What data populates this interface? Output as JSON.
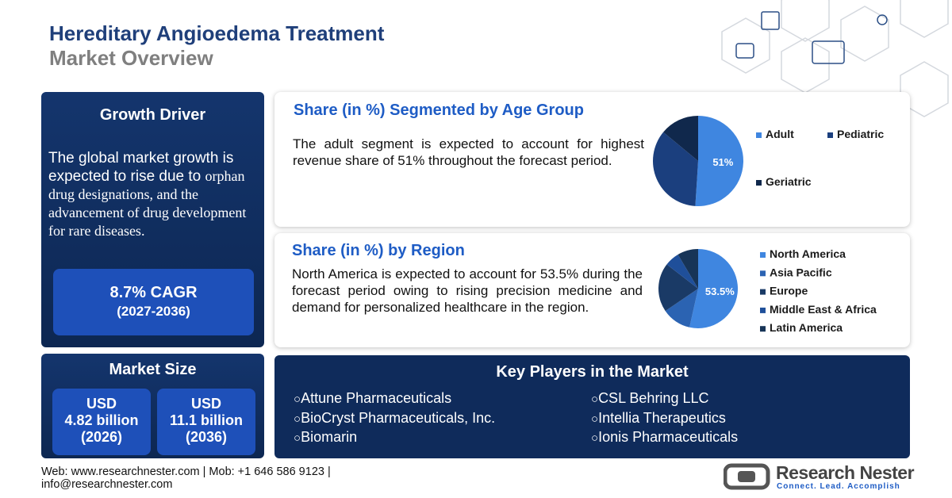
{
  "header": {
    "title": "Hereditary Angioedema Treatment",
    "subtitle": "Market Overview"
  },
  "growth_driver": {
    "title": "Growth Driver",
    "text_sans": "The global market growth is expected to rise due to",
    "text_serif": "orphan drug designations, and the advancement of drug development for rare diseases.",
    "cagr": "8.7% CAGR",
    "period": "(2027-2036)"
  },
  "market_size": {
    "title": "Market Size",
    "boxes": [
      {
        "currency": "USD",
        "value": "4.82 billion",
        "year": "(2026)"
      },
      {
        "currency": "USD",
        "value": "11.1 billion",
        "year": "(2036)"
      }
    ]
  },
  "age_chart": {
    "type": "pie",
    "title": "Share (in %) Segmented by Age Group",
    "text": "The adult segment is expected to account for highest revenue share of 51% throughout the forecast period.",
    "categories": [
      "Adult",
      "Pediatric",
      "Geriatric"
    ],
    "values": [
      51,
      35,
      14
    ],
    "value_labels": [
      "51%",
      null,
      null
    ],
    "colors": [
      "#3f86e0",
      "#1b3f7e",
      "#10284c"
    ]
  },
  "region_chart": {
    "type": "pie",
    "title": "Share (in %) by Region",
    "text": "North America is expected to account for 53.5% during the forecast period owing to rising precision medicine and demand for personalized healthcare in the region.",
    "categories": [
      "North America",
      "Asia Pacific",
      "Europe",
      "Middle East & Africa",
      "Latin America"
    ],
    "values": [
      53.5,
      12,
      20,
      6,
      8.5
    ],
    "value_labels": [
      "53.5%",
      null,
      null,
      null,
      null
    ],
    "colors": [
      "#3f86e0",
      "#2b63b2",
      "#1a3a66",
      "#1f4f9a",
      "#173457"
    ]
  },
  "key_players": {
    "title": "Key Players in the Market",
    "items": [
      "Attune Pharmaceuticals",
      "BioCryst Pharmaceuticals, Inc.",
      "Biomarin",
      "CSL Behring LLC",
      "Intellia Therapeutics",
      "Ionis Pharmaceuticals"
    ]
  },
  "footer": {
    "web": "Web: www.researchnester.com",
    "mob": "| Mob: +1 646 586 9123 |",
    "email": "info@researchnester.com"
  },
  "logo": {
    "name": "Research Nester",
    "tagline": "Connect. Lead. Accomplish"
  }
}
